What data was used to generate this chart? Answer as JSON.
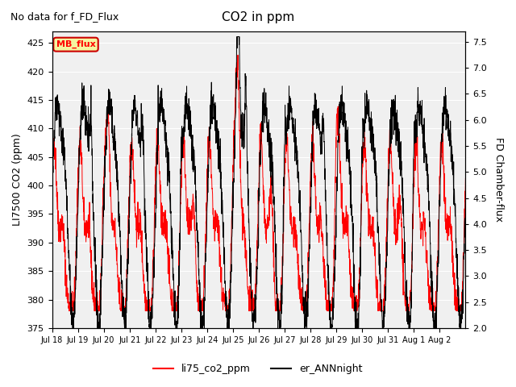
{
  "title": "CO2 in ppm",
  "suptitle": "No data for f_FD_Flux",
  "ylabel_left": "LI7500 CO2 (ppm)",
  "ylabel_right": "FD Chamber-flux",
  "ylim_left": [
    375,
    427
  ],
  "ylim_right": [
    2.0,
    7.7
  ],
  "xtick_labels": [
    "Jul 18",
    "Jul 19",
    "Jul 20",
    "Jul 21",
    "Jul 22",
    "Jul 23",
    "Jul 24",
    "Jul 25",
    "Jul 26",
    "Jul 27",
    "Jul 28",
    "Jul 29",
    "Jul 30",
    "Jul 31",
    "Aug 1",
    "Aug 2"
  ],
  "legend_labels": [
    "li75_co2_ppm",
    "er_ANNnight"
  ],
  "legend_colors": [
    "red",
    "black"
  ],
  "color_red": "#FF0000",
  "color_black": "#000000",
  "background_color": "#f0f0f0",
  "MB_flux_label": "MB_flux",
  "MB_flux_box_color": "#f5f5a0",
  "MB_flux_box_edge": "#cc0000",
  "yticks_left": [
    375,
    380,
    385,
    390,
    395,
    400,
    405,
    410,
    415,
    420,
    425
  ],
  "yticks_right": [
    2.0,
    2.5,
    3.0,
    3.5,
    4.0,
    4.5,
    5.0,
    5.5,
    6.0,
    6.5,
    7.0,
    7.5
  ]
}
